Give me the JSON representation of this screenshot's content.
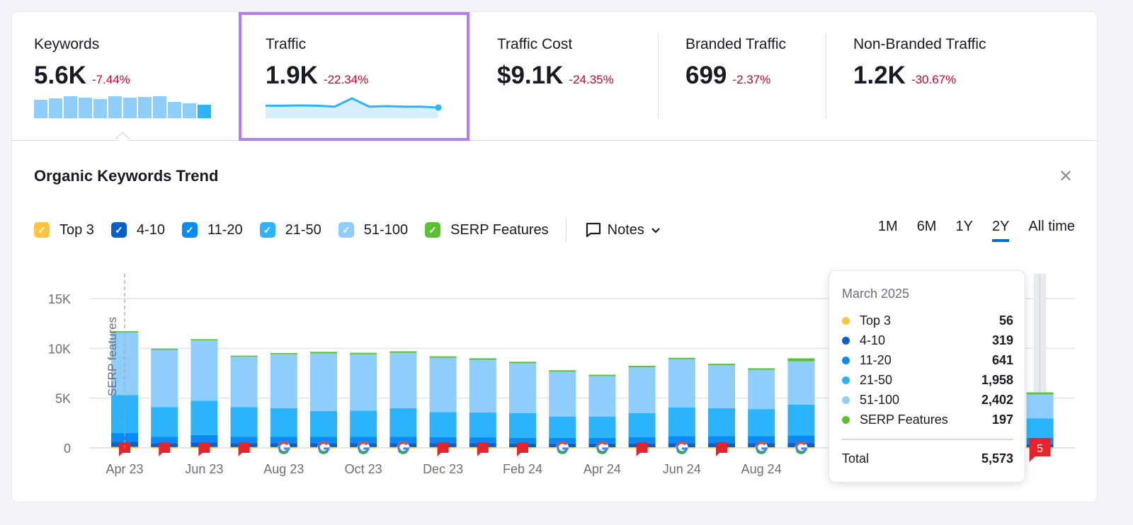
{
  "metrics": [
    {
      "label": "Keywords",
      "value": "5.6K",
      "change": "-7.44%"
    },
    {
      "label": "Traffic",
      "value": "1.9K",
      "change": "-22.34%"
    },
    {
      "label": "Traffic Cost",
      "value": "$9.1K",
      "change": "-24.35%"
    },
    {
      "label": "Branded Traffic",
      "value": "699",
      "change": "-2.37%"
    },
    {
      "label": "Non-Branded Traffic",
      "value": "1.2K",
      "change": "-30.67%"
    }
  ],
  "keywords_sparkline": [
    26,
    28,
    31,
    29,
    27,
    31,
    29,
    30,
    31,
    23,
    21,
    19
  ],
  "traffic_sparkline": [
    12,
    12,
    12.3,
    12,
    11,
    20,
    11,
    11.5,
    11,
    11,
    10
  ],
  "panel": {
    "title": "Organic Keywords Trend",
    "close_icon": "close-icon"
  },
  "legend": [
    {
      "label": "Top 3",
      "color": "#ffc53d"
    },
    {
      "label": "4-10",
      "color": "#0a5fc8"
    },
    {
      "label": "11-20",
      "color": "#0a8af5"
    },
    {
      "label": "21-50",
      "color": "#2bb3fb"
    },
    {
      "label": "51-100",
      "color": "#8fcdfc"
    },
    {
      "label": "SERP Features",
      "color": "#59c132"
    }
  ],
  "notes_label": "Notes",
  "ranges": [
    "1M",
    "6M",
    "1Y",
    "2Y",
    "All time"
  ],
  "active_range": "2Y",
  "chart_data": {
    "type": "bar",
    "stacked": true,
    "y_ticks": [
      "0",
      "5K",
      "10K",
      "15K"
    ],
    "ylim": [
      0,
      15000
    ],
    "x_tick_labels": [
      "Apr 23",
      "Jun 23",
      "Aug 23",
      "Oct 23",
      "Dec 23",
      "Feb 24",
      "Apr 24",
      "Jun 24",
      "Aug 24",
      "O"
    ],
    "annotation": "SERP features",
    "categories": [
      "Apr 23",
      "May 23",
      "Jun 23",
      "Jul 23",
      "Aug 23",
      "Sep 23",
      "Oct 23",
      "Nov 23",
      "Dec 23",
      "Jan 24",
      "Feb 24",
      "Mar 24",
      "Apr 24",
      "May 24",
      "Jun 24",
      "Jul 24",
      "Aug 24",
      "Sep 24",
      "Oct 24",
      "Nov 24",
      "Dec 24",
      "Jan 25",
      "Feb 25",
      "Mar 25"
    ],
    "series": [
      {
        "name": "Top 3",
        "values": [
          100,
          80,
          90,
          80,
          80,
          80,
          80,
          80,
          80,
          80,
          70,
          70,
          70,
          70,
          70,
          70,
          70,
          70,
          null,
          null,
          null,
          null,
          null,
          56
        ]
      },
      {
        "name": "4-10",
        "values": [
          500,
          400,
          450,
          400,
          400,
          400,
          400,
          400,
          400,
          380,
          380,
          370,
          370,
          380,
          400,
          400,
          400,
          420,
          null,
          null,
          null,
          null,
          null,
          319
        ]
      },
      {
        "name": "11-20",
        "values": [
          900,
          620,
          760,
          620,
          620,
          620,
          620,
          620,
          600,
          600,
          550,
          560,
          560,
          620,
          700,
          700,
          700,
          750,
          null,
          null,
          null,
          null,
          null,
          641
        ]
      },
      {
        "name": "21-50",
        "values": [
          3800,
          3000,
          3450,
          3000,
          2900,
          2600,
          2650,
          2900,
          2520,
          2490,
          2500,
          2150,
          2150,
          2430,
          2880,
          2830,
          2730,
          3110,
          null,
          null,
          null,
          null,
          null,
          1958
        ]
      },
      {
        "name": "51-100",
        "values": [
          6300,
          5750,
          6050,
          5050,
          5400,
          5800,
          5650,
          5550,
          5450,
          5300,
          5000,
          4500,
          4050,
          4600,
          4850,
          4300,
          3950,
          4350,
          null,
          null,
          null,
          null,
          null,
          2402
        ]
      },
      {
        "name": "SERP Features",
        "values": [
          120,
          120,
          120,
          120,
          130,
          150,
          150,
          150,
          150,
          150,
          150,
          150,
          150,
          150,
          150,
          150,
          150,
          300,
          null,
          null,
          null,
          null,
          null,
          197
        ]
      }
    ],
    "markers": [
      "note",
      "note",
      "note",
      "note",
      "google",
      "google",
      "google",
      "google",
      "note",
      "note",
      "note",
      "google",
      "google",
      "note",
      "google",
      "note",
      "google",
      "google",
      null,
      null,
      null,
      null,
      null,
      "note-count"
    ],
    "marker_count": "5"
  },
  "tooltip": {
    "title": "March 2025",
    "rows": [
      {
        "label": "Top 3",
        "value": "56"
      },
      {
        "label": "4-10",
        "value": "319"
      },
      {
        "label": "11-20",
        "value": "641"
      },
      {
        "label": "21-50",
        "value": "1,958"
      },
      {
        "label": "51-100",
        "value": "2,402"
      },
      {
        "label": "SERP Features",
        "value": "197"
      }
    ],
    "total_label": "Total",
    "total_value": "5,573"
  }
}
